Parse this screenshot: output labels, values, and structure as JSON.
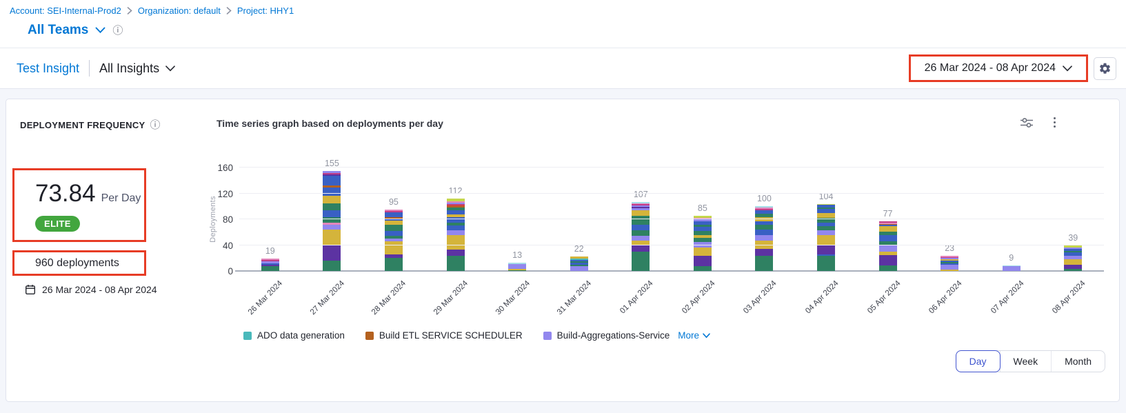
{
  "breadcrumb": {
    "items": [
      {
        "label": "Account: SEI-Internal-Prod2"
      },
      {
        "label": "Organization: default"
      },
      {
        "label": "Project: HHY1"
      }
    ]
  },
  "team_selector": {
    "label": "All Teams"
  },
  "insight_bar": {
    "insight": "Test Insight",
    "scope": "All Insights"
  },
  "date_picker": {
    "range": "26 Mar 2024  -  08 Apr 2024"
  },
  "widget": {
    "title": "DEPLOYMENT FREQUENCY",
    "value": "73.84",
    "unit": "Per Day",
    "badge": "ELITE",
    "badge_color": "#42A63E",
    "total": "960 deployments",
    "date_range": "26 Mar 2024 - 08 Apr 2024"
  },
  "chart_data": {
    "type": "bar",
    "stacked": true,
    "title": "Time series graph based on deployments per day",
    "ylabel": "Deployments",
    "yticks": [
      0,
      40,
      80,
      120,
      160
    ],
    "ylim": [
      0,
      160
    ],
    "grid": true,
    "legend_position": "bottom-left",
    "categories": [
      "26 Mar 2024",
      "27 Mar 2024",
      "28 Mar 2024",
      "29 Mar 2024",
      "30 Mar 2024",
      "31 Mar 2024",
      "01 Apr 2024",
      "02 Apr 2024",
      "03 Apr 2024",
      "04 Apr 2024",
      "05 Apr 2024",
      "06 Apr 2024",
      "07 Apr 2024",
      "08 Apr 2024"
    ],
    "totals": [
      19,
      155,
      95,
      112,
      13,
      22,
      107,
      85,
      100,
      104,
      77,
      23,
      9,
      39
    ],
    "palette": {
      "g": "#2F8162",
      "p": "#5C33A2",
      "go": "#D4B43B",
      "lv": "#9287EE",
      "bl": "#3960C4",
      "tl": "#4AB9BB",
      "or": "#B4611F",
      "mg": "#C13C86",
      "pk": "#E487BC",
      "lg": "#C5D84B",
      "cy": "#A6DEE8",
      "rd": "#CF4444"
    },
    "bars": [
      [
        [
          "g",
          7
        ],
        [
          "p",
          3
        ],
        [
          "bl",
          2
        ],
        [
          "lv",
          3
        ],
        [
          "mg",
          2
        ],
        [
          "pk",
          2
        ]
      ],
      [
        [
          "g",
          16
        ],
        [
          "p",
          25
        ],
        [
          "go",
          23
        ],
        [
          "lv",
          8
        ],
        [
          "pk",
          3
        ],
        [
          "g",
          8
        ],
        [
          "bl",
          11
        ],
        [
          "g",
          11
        ],
        [
          "go",
          11
        ],
        [
          "bl",
          13
        ],
        [
          "or",
          3
        ],
        [
          "bl",
          15
        ],
        [
          "p",
          2
        ],
        [
          "mg",
          3
        ],
        [
          "lv",
          3
        ]
      ],
      [
        [
          "g",
          20
        ],
        [
          "p",
          6
        ],
        [
          "go",
          20
        ],
        [
          "lv",
          4
        ],
        [
          "g",
          4
        ],
        [
          "bl",
          8
        ],
        [
          "g",
          10
        ],
        [
          "go",
          6
        ],
        [
          "bl",
          3
        ],
        [
          "or",
          2
        ],
        [
          "bl",
          8
        ],
        [
          "mg",
          2
        ],
        [
          "pk",
          2
        ]
      ],
      [
        [
          "g",
          24
        ],
        [
          "p",
          9
        ],
        [
          "go",
          23
        ],
        [
          "lv",
          7
        ],
        [
          "bl",
          7
        ],
        [
          "g",
          5
        ],
        [
          "bl",
          8
        ],
        [
          "go",
          5
        ],
        [
          "bl",
          6
        ],
        [
          "g",
          4
        ],
        [
          "or",
          2
        ],
        [
          "rd",
          2
        ],
        [
          "mg",
          2
        ],
        [
          "lv",
          2
        ],
        [
          "pk",
          2
        ],
        [
          "lg",
          4
        ]
      ],
      [
        [
          "g",
          1
        ],
        [
          "go",
          2
        ],
        [
          "lv",
          8
        ],
        [
          "cy",
          2
        ]
      ],
      [
        [
          "lv",
          7
        ],
        [
          "g",
          3
        ],
        [
          "bl",
          3
        ],
        [
          "g",
          2
        ],
        [
          "bl",
          2
        ],
        [
          "tl",
          2
        ],
        [
          "go",
          3
        ]
      ],
      [
        [
          "g",
          30
        ],
        [
          "p",
          9
        ],
        [
          "go",
          8
        ],
        [
          "lv",
          7
        ],
        [
          "g",
          9
        ],
        [
          "bl",
          9
        ],
        [
          "g",
          13
        ],
        [
          "go",
          9
        ],
        [
          "lv",
          3
        ],
        [
          "p",
          2
        ],
        [
          "lv",
          2
        ],
        [
          "mg",
          2
        ],
        [
          "pk",
          2
        ],
        [
          "cy",
          2
        ]
      ],
      [
        [
          "g",
          8
        ],
        [
          "p",
          16
        ],
        [
          "go",
          12
        ],
        [
          "lv",
          9
        ],
        [
          "g",
          6
        ],
        [
          "go",
          5
        ],
        [
          "g",
          6
        ],
        [
          "bl",
          6
        ],
        [
          "g",
          4
        ],
        [
          "bl",
          5
        ],
        [
          "lv",
          3
        ],
        [
          "pk",
          2
        ],
        [
          "lg",
          3
        ]
      ],
      [
        [
          "g",
          24
        ],
        [
          "p",
          10
        ],
        [
          "go",
          13
        ],
        [
          "lv",
          9
        ],
        [
          "bl",
          8
        ],
        [
          "g",
          8
        ],
        [
          "bl",
          5
        ],
        [
          "go",
          6
        ],
        [
          "g",
          6
        ],
        [
          "bl",
          5
        ],
        [
          "mg",
          2
        ],
        [
          "pk",
          2
        ],
        [
          "cy",
          2
        ]
      ],
      [
        [
          "g",
          23
        ],
        [
          "bl",
          3
        ],
        [
          "p",
          15
        ],
        [
          "go",
          15
        ],
        [
          "lv",
          7
        ],
        [
          "g",
          6
        ],
        [
          "bl",
          6
        ],
        [
          "g",
          7
        ],
        [
          "go",
          8
        ],
        [
          "bl",
          6
        ],
        [
          "g",
          2
        ],
        [
          "bl",
          4
        ],
        [
          "lg",
          2
        ]
      ],
      [
        [
          "g",
          9
        ],
        [
          "p",
          16
        ],
        [
          "go",
          5
        ],
        [
          "lv",
          10
        ],
        [
          "g",
          6
        ],
        [
          "bl",
          9
        ],
        [
          "g",
          6
        ],
        [
          "go",
          8
        ],
        [
          "bl",
          2
        ],
        [
          "or",
          2
        ],
        [
          "pk",
          2
        ],
        [
          "mg",
          2
        ]
      ],
      [
        [
          "go",
          2
        ],
        [
          "lv",
          8
        ],
        [
          "bl",
          2
        ],
        [
          "g",
          2
        ],
        [
          "bl",
          2
        ],
        [
          "go",
          2
        ],
        [
          "lv",
          2
        ],
        [
          "mg",
          1
        ],
        [
          "pk",
          2
        ]
      ],
      [
        [
          "lv",
          7
        ],
        [
          "cy",
          2
        ]
      ],
      [
        [
          "g",
          3
        ],
        [
          "p",
          7
        ],
        [
          "go",
          8
        ],
        [
          "lv",
          6
        ],
        [
          "bl",
          5
        ],
        [
          "g",
          2
        ],
        [
          "bl",
          3
        ],
        [
          "lv",
          2
        ],
        [
          "lg",
          3
        ]
      ]
    ],
    "legend": [
      {
        "label": "ADO data generation",
        "color": "#4AB9BB"
      },
      {
        "label": "Build ETL SERVICE SCHEDULER",
        "color": "#B4611F"
      },
      {
        "label": "Build-Aggregations-Service",
        "color": "#9287EE"
      }
    ],
    "more_label": "More"
  },
  "granularity": {
    "options": [
      "Day",
      "Week",
      "Month"
    ],
    "selected": "Day"
  },
  "annotation_color": "#E73C25"
}
